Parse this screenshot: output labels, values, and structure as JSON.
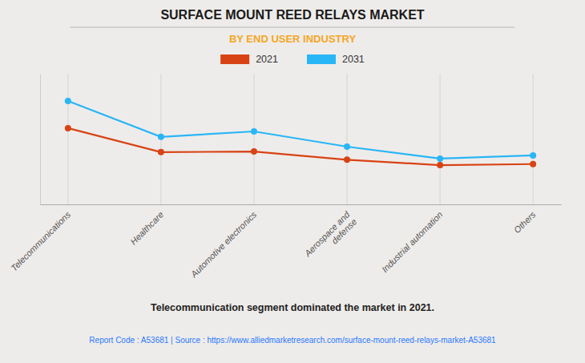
{
  "chart_data": {
    "type": "line",
    "title": "SURFACE MOUNT REED RELAYS MARKET",
    "subtitle": "BY END USER INDUSTRY",
    "categories": [
      "Telecommunications",
      "Healthcare",
      "Automotive electronics",
      "Aerospace and\ndefense",
      "Industrial automation",
      "Others"
    ],
    "series": [
      {
        "name": "2021",
        "color": "#D84315",
        "marker": "circle",
        "values": [
          7.0,
          4.8,
          4.85,
          4.1,
          3.6,
          3.7
        ]
      },
      {
        "name": "2031",
        "color": "#29B6F6",
        "marker": "circle",
        "values": [
          9.5,
          6.2,
          6.7,
          5.3,
          4.2,
          4.5
        ]
      }
    ],
    "ylim": [
      0,
      12
    ],
    "grid": true,
    "legend": "top",
    "tick_labels": "x",
    "annotations": [
      "Telecommunication segment dominated the market in 2021.",
      "Report Code : A53681  |  Source : https://www.alliedmarketresearch.com/surface-mount-reed-relays-market-A53681"
    ]
  }
}
